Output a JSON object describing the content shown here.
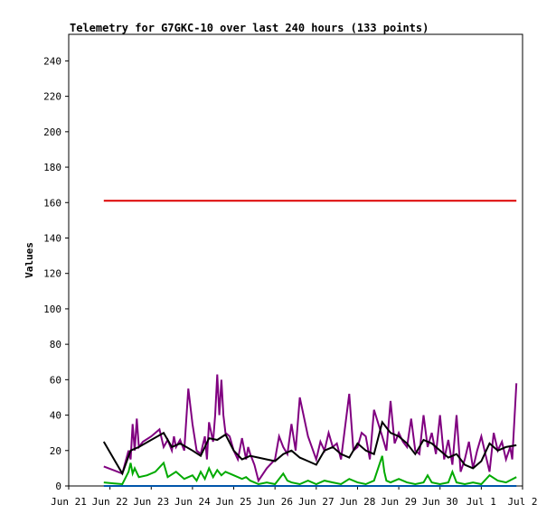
{
  "chart_data": {
    "type": "line",
    "title": "Telemetry for G7GKC-10 over last 240 hours (133 points)",
    "ylabel": "Values",
    "xlabel": "",
    "ylim": [
      0,
      255
    ],
    "xlim": [
      0,
      11
    ],
    "grid": false,
    "legend": "none",
    "yticks": [
      0,
      20,
      40,
      60,
      80,
      100,
      120,
      140,
      160,
      180,
      200,
      220,
      240
    ],
    "xticks": [
      {
        "value": 0,
        "label": "Jun 21"
      },
      {
        "value": 1,
        "label": "Jun 22"
      },
      {
        "value": 2,
        "label": "Jun 23"
      },
      {
        "value": 3,
        "label": "Jun 24"
      },
      {
        "value": 4,
        "label": "Jun 25"
      },
      {
        "value": 5,
        "label": "Jun 26"
      },
      {
        "value": 6,
        "label": "Jun 27"
      },
      {
        "value": 7,
        "label": "Jun 28"
      },
      {
        "value": 8,
        "label": "Jun 29"
      },
      {
        "value": 9,
        "label": "Jun 30"
      },
      {
        "value": 10,
        "label": "Jul 1"
      },
      {
        "value": 11,
        "label": "Jul 2"
      }
    ],
    "series": [
      {
        "color": "#dd0000",
        "x": [
          0.85,
          10.85
        ],
        "y": [
          161,
          161
        ]
      },
      {
        "color": "#800080",
        "x": [
          0.85,
          1.3,
          1.45,
          1.5,
          1.55,
          1.6,
          1.65,
          1.7,
          1.8,
          2.0,
          2.1,
          2.2,
          2.3,
          2.4,
          2.5,
          2.55,
          2.6,
          2.7,
          2.8,
          2.9,
          3.0,
          3.1,
          3.2,
          3.3,
          3.35,
          3.4,
          3.5,
          3.55,
          3.6,
          3.65,
          3.7,
          3.75,
          3.8,
          3.9,
          4.0,
          4.1,
          4.2,
          4.3,
          4.35,
          4.4,
          4.5,
          4.6,
          4.8,
          5.0,
          5.1,
          5.2,
          5.3,
          5.4,
          5.5,
          5.6,
          5.8,
          6.0,
          6.1,
          6.2,
          6.3,
          6.4,
          6.5,
          6.6,
          6.8,
          6.9,
          7.0,
          7.1,
          7.2,
          7.3,
          7.4,
          7.6,
          7.7,
          7.8,
          7.9,
          8.0,
          8.1,
          8.2,
          8.3,
          8.4,
          8.5,
          8.6,
          8.7,
          8.8,
          8.9,
          9.0,
          9.1,
          9.2,
          9.3,
          9.4,
          9.5,
          9.6,
          9.7,
          9.8,
          9.9,
          10.0,
          10.1,
          10.2,
          10.3,
          10.4,
          10.5,
          10.6,
          10.7,
          10.75,
          10.85
        ],
        "y": [
          11,
          7,
          20,
          15,
          35,
          20,
          38,
          22,
          25,
          28,
          30,
          32,
          22,
          26,
          20,
          28,
          22,
          26,
          20,
          55,
          35,
          20,
          18,
          28,
          15,
          36,
          25,
          40,
          63,
          40,
          60,
          40,
          30,
          28,
          20,
          15,
          27,
          15,
          22,
          18,
          12,
          3,
          10,
          15,
          28,
          22,
          18,
          35,
          20,
          50,
          28,
          15,
          25,
          20,
          30,
          22,
          24,
          15,
          52,
          20,
          22,
          30,
          28,
          15,
          43,
          28,
          20,
          48,
          24,
          30,
          25,
          22,
          38,
          20,
          18,
          40,
          22,
          30,
          18,
          40,
          15,
          26,
          12,
          40,
          8,
          15,
          25,
          10,
          20,
          28,
          18,
          8,
          30,
          20,
          25,
          15,
          22,
          15,
          58
        ]
      },
      {
        "color": "#000000",
        "x": [
          0.85,
          1.3,
          1.5,
          1.7,
          2.0,
          2.3,
          2.5,
          2.7,
          3.0,
          3.2,
          3.4,
          3.6,
          3.8,
          4.0,
          4.2,
          4.4,
          4.6,
          4.8,
          5.0,
          5.2,
          5.4,
          5.6,
          5.8,
          6.0,
          6.2,
          6.4,
          6.6,
          6.8,
          7.0,
          7.2,
          7.4,
          7.6,
          7.8,
          8.0,
          8.2,
          8.4,
          8.6,
          8.8,
          9.0,
          9.2,
          9.4,
          9.6,
          9.8,
          10.0,
          10.2,
          10.4,
          10.6,
          10.85
        ],
        "y": [
          25,
          7,
          20,
          22,
          26,
          30,
          22,
          24,
          20,
          17,
          27,
          26,
          29,
          20,
          15,
          17,
          16,
          15,
          14,
          18,
          20,
          16,
          14,
          12,
          20,
          22,
          18,
          16,
          24,
          20,
          18,
          36,
          30,
          28,
          24,
          18,
          26,
          24,
          20,
          16,
          18,
          12,
          10,
          14,
          24,
          20,
          22,
          23
        ]
      },
      {
        "color": "#00aa00",
        "x": [
          0.85,
          1.3,
          1.45,
          1.5,
          1.55,
          1.6,
          1.7,
          1.9,
          2.1,
          2.3,
          2.4,
          2.6,
          2.8,
          3.0,
          3.1,
          3.2,
          3.3,
          3.4,
          3.5,
          3.6,
          3.7,
          3.8,
          4.0,
          4.2,
          4.3,
          4.4,
          4.6,
          4.8,
          5.0,
          5.2,
          5.3,
          5.4,
          5.6,
          5.8,
          6.0,
          6.2,
          6.4,
          6.6,
          6.8,
          7.0,
          7.2,
          7.4,
          7.6,
          7.65,
          7.7,
          7.8,
          8.0,
          8.2,
          8.4,
          8.6,
          8.7,
          8.8,
          9.0,
          9.2,
          9.3,
          9.4,
          9.6,
          9.8,
          10.0,
          10.2,
          10.4,
          10.6,
          10.85
        ],
        "y": [
          2,
          1,
          8,
          13,
          7,
          10,
          5,
          6,
          8,
          13,
          5,
          8,
          4,
          6,
          3,
          8,
          4,
          10,
          5,
          9,
          6,
          8,
          6,
          4,
          5,
          3,
          1,
          2,
          1,
          7,
          3,
          2,
          1,
          3,
          1,
          3,
          2,
          1,
          4,
          2,
          1,
          3,
          17,
          8,
          3,
          2,
          4,
          2,
          1,
          2,
          6,
          2,
          1,
          2,
          8,
          2,
          1,
          2,
          1,
          6,
          3,
          2,
          5
        ]
      },
      {
        "color": "#0055aa",
        "x": [
          0.85,
          10.85
        ],
        "y": [
          0,
          0
        ]
      }
    ]
  }
}
